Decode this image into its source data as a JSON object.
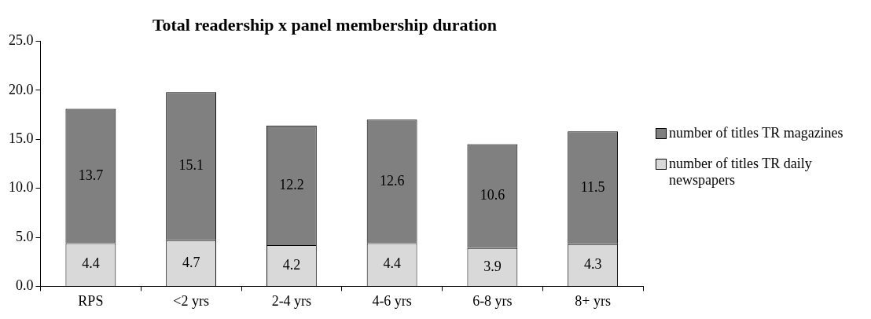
{
  "chart_data": {
    "type": "bar",
    "title": "Total readership x panel membership duration",
    "categories": [
      "RPS",
      "<2 yrs",
      "2-4 yrs",
      "4-6 yrs",
      "6-8 yrs",
      "8+ yrs"
    ],
    "stacked": true,
    "series": [
      {
        "name": "number of titles TR daily newspapers",
        "color": "#d9d9d9",
        "values": [
          4.4,
          4.7,
          4.2,
          4.4,
          3.9,
          4.3
        ]
      },
      {
        "name": "number of titles TR magazines",
        "color": "#808080",
        "values": [
          13.7,
          15.1,
          12.2,
          12.6,
          10.6,
          11.5
        ]
      }
    ],
    "ylim": [
      0,
      25
    ],
    "yticks": [
      {
        "value": 0,
        "label": "0.0"
      },
      {
        "value": 5,
        "label": "5.0"
      },
      {
        "value": 10,
        "label": "10.0"
      },
      {
        "value": 15,
        "label": "15.0"
      },
      {
        "value": 20,
        "label": "20.0"
      },
      {
        "value": 25,
        "label": "25.0"
      }
    ],
    "grid": false,
    "legend": "right",
    "data_labels": true
  }
}
